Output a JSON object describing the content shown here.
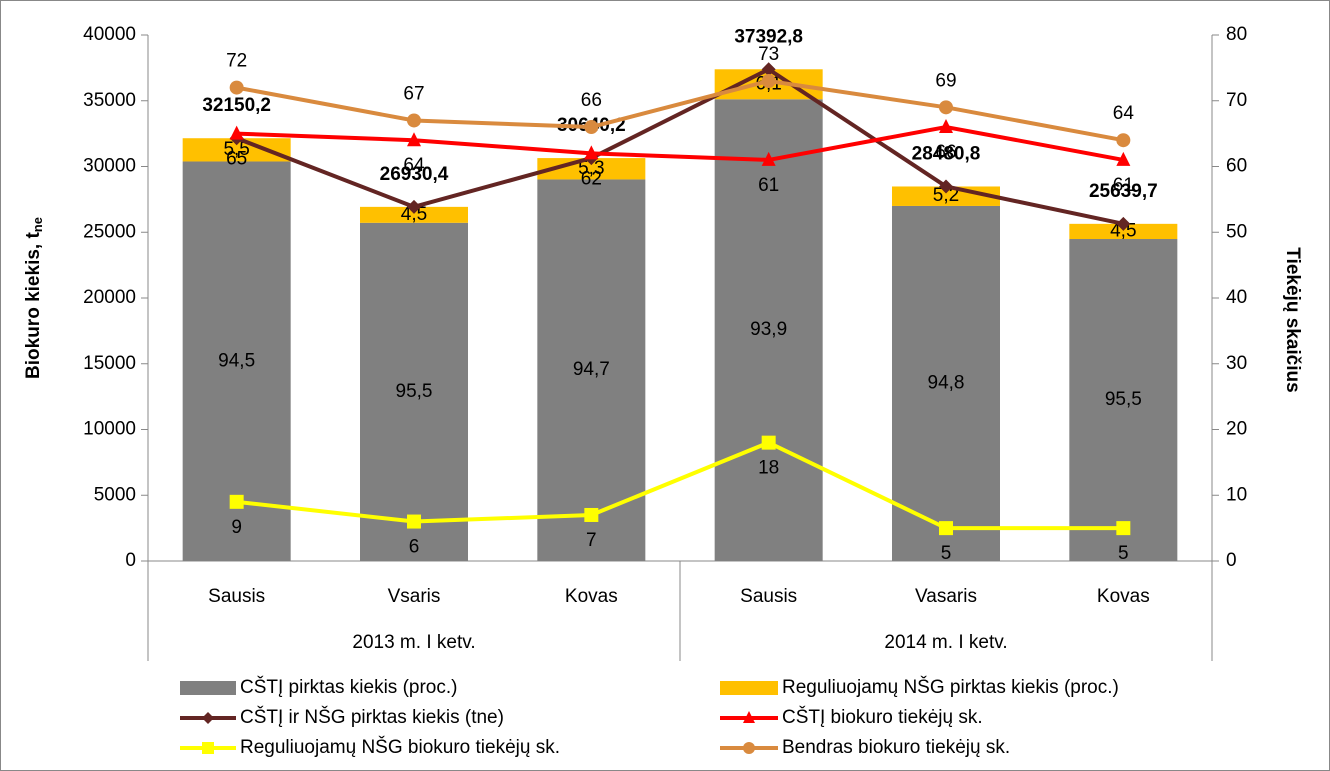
{
  "chart_data": {
    "type": "stacked_bar_line",
    "categories": [
      "Sausis",
      "Vsaris",
      "Kovas",
      "Sausis",
      "Vasaris",
      "Kovas"
    ],
    "groups": [
      "2013 m. I ketv.",
      "2014 m. I ketv."
    ],
    "y_label": "Biokuro kiekis, t",
    "y_label_sub": "ne",
    "y2_label": "Tiekėjų skaičius",
    "ylim": [
      0,
      40000
    ],
    "yticks": [
      0,
      5000,
      10000,
      15000,
      20000,
      25000,
      30000,
      35000,
      40000
    ],
    "y2lim": [
      0,
      80
    ],
    "y2ticks": [
      0,
      10,
      20,
      30,
      40,
      50,
      60,
      70,
      80
    ],
    "series": [
      {
        "name": "CŠTĮ pirktas kiekis (proc.)",
        "type": "bar",
        "color": "#808080",
        "values": [
          94.5,
          95.5,
          94.7,
          93.9,
          94.8,
          95.5
        ],
        "value_labels": [
          "94,5",
          "95,5",
          "94,7",
          "93,9",
          "94,8",
          "95,5"
        ]
      },
      {
        "name": "Reguliuojamų NŠG pirktas kiekis (proc.)",
        "type": "bar",
        "color": "#FFC000",
        "values": [
          5.5,
          4.5,
          5.3,
          6.1,
          5.2,
          4.5
        ],
        "value_labels": [
          "5,5",
          "4,5",
          "5,3",
          "6,1",
          "5,2",
          "4,5"
        ]
      },
      {
        "name": "CŠTĮ ir NŠG pirktas kiekis (tne)",
        "type": "line",
        "marker": "diamond",
        "color": "#632523",
        "values": [
          32150.2,
          26930.4,
          30640.2,
          37392.8,
          28480.8,
          25639.7
        ],
        "value_labels": [
          "32150,2",
          "26930,4",
          "30640,2",
          "37392,8",
          "28480,8",
          "25639,7"
        ]
      },
      {
        "name": "CŠTĮ biokuro tiekėjų sk.",
        "type": "line",
        "marker": "triangle",
        "axis": "y2",
        "color": "#FF0000",
        "values": [
          65,
          64,
          62,
          61,
          66,
          61
        ]
      },
      {
        "name": "Reguliuojamų NŠG biokuro tiekėjų sk.",
        "type": "line",
        "marker": "square",
        "axis": "y2",
        "color": "#FFFF00",
        "values": [
          9,
          6,
          7,
          18,
          5,
          5
        ]
      },
      {
        "name": "Bendras biokuro tiekėjų sk.",
        "type": "line",
        "marker": "circle",
        "axis": "y2",
        "color": "#D98A3E",
        "values": [
          72,
          67,
          66,
          73,
          69,
          64
        ]
      }
    ]
  }
}
